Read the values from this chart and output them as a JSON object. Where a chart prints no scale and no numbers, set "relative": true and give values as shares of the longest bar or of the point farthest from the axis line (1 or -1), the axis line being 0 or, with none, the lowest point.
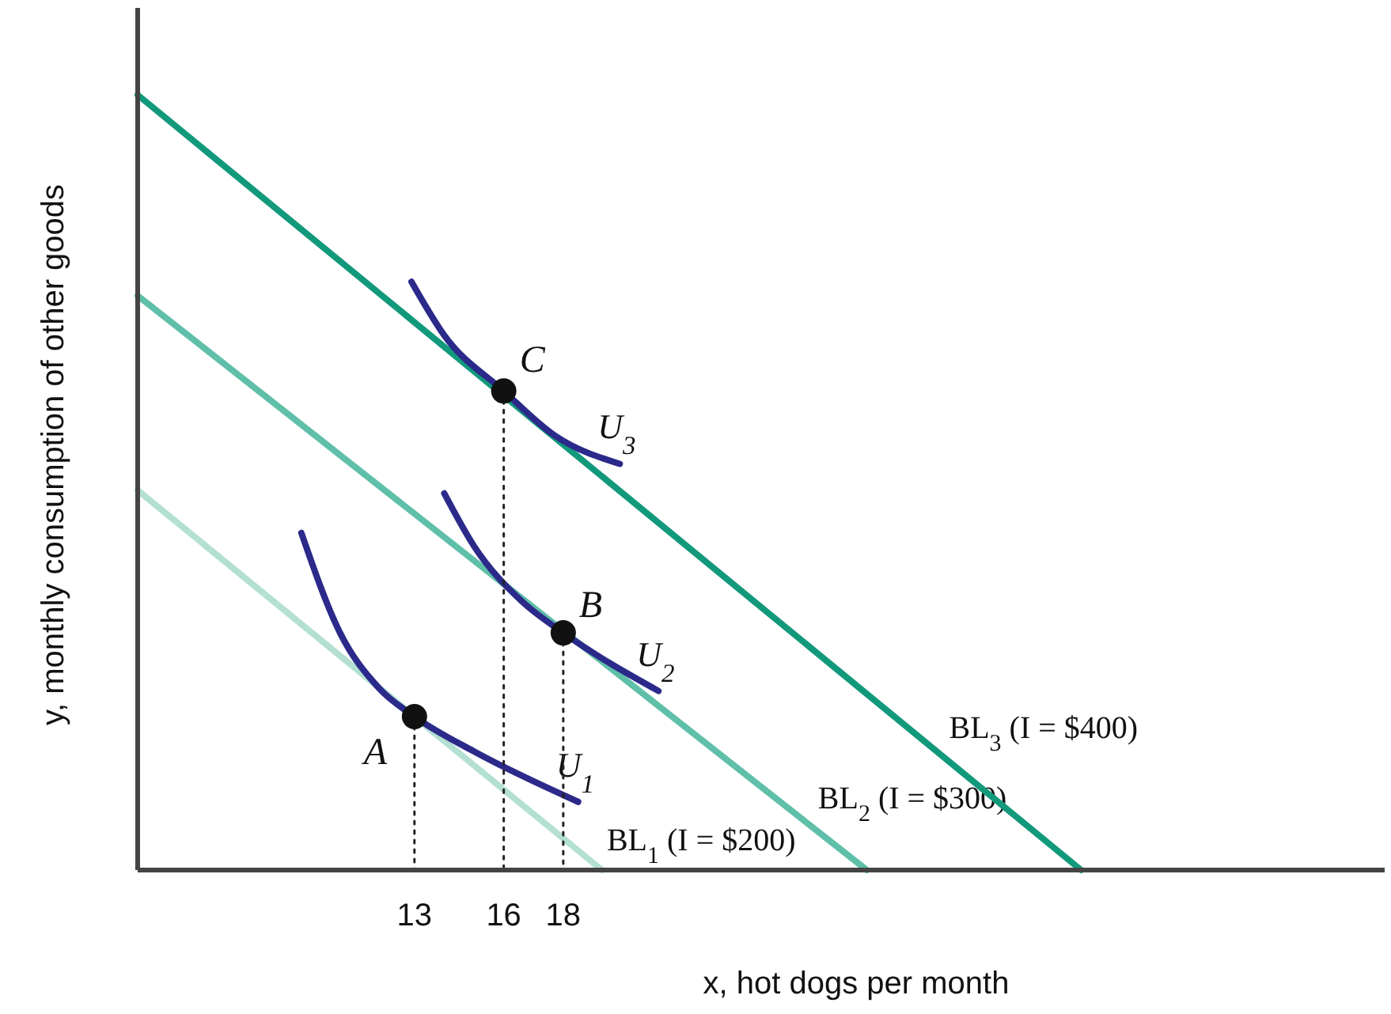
{
  "chart_data": {
    "type": "line",
    "relative": true,
    "xlabel": "x, hot dogs per month",
    "ylabel": "y, monthly consumption of other goods",
    "xlim": [
      3.7,
      45.6
    ],
    "xticks": [
      13,
      16,
      18
    ],
    "line_style": "solid",
    "marker": "none",
    "grid": false,
    "series": [
      {
        "name": "BL$_{1}$ (I = $200)",
        "color": "#b3e0d3",
        "x": [
          3.7,
          19.3
        ],
        "values": [
          0.49,
          0
        ]
      },
      {
        "name": "BL$_{2}$ (I = $300)",
        "color": "#5fbfa8",
        "x": [
          3.7,
          28.2
        ],
        "values": [
          0.741,
          0
        ]
      },
      {
        "name": "BL$_{3}$ (I = $400)",
        "color": "#12997c",
        "x": [
          3.7,
          35.4
        ],
        "values": [
          1,
          0
        ]
      },
      {
        "name": "U$_{1}$",
        "color": "#2b2a8a",
        "x": [
          9.2,
          10.5,
          11.8,
          13,
          15,
          18.5
        ],
        "values": [
          0.435,
          0.306,
          0.235,
          0.198,
          0.153,
          0.088
        ]
      },
      {
        "name": "U$_{2}$",
        "color": "#2b2a8a",
        "x": [
          14,
          15,
          16.6,
          18,
          21.2
        ],
        "values": [
          0.486,
          0.418,
          0.347,
          0.306,
          0.231
        ]
      },
      {
        "name": "U$_{3}$",
        "color": "#2b2a8a",
        "x": [
          12.9,
          14,
          16,
          17.7,
          19.9
        ],
        "values": [
          0.759,
          0.69,
          0.618,
          0.561,
          0.524
        ]
      },
      {
        "color": "#222222",
        "line_style": "dotted",
        "x": [
          13,
          13
        ],
        "values": [
          0.198,
          0
        ]
      },
      {
        "color": "#222222",
        "line_style": "dotted",
        "x": [
          16,
          16
        ],
        "values": [
          0.618,
          0
        ]
      },
      {
        "color": "#222222",
        "line_style": "dotted",
        "x": [
          18,
          18
        ],
        "values": [
          0.306,
          0
        ]
      },
      {
        "type": "scatter",
        "marker": "circle",
        "color": "#111111",
        "x": [
          13,
          18,
          16
        ],
        "values": [
          0.198,
          0.306,
          0.618
        ]
      }
    ],
    "annotations": [
      {
        "text": "A",
        "x": 13,
        "y": 0.198
      },
      {
        "text": "B",
        "x": 18,
        "y": 0.306
      },
      {
        "text": "C",
        "x": 16,
        "y": 0.618
      }
    ]
  }
}
